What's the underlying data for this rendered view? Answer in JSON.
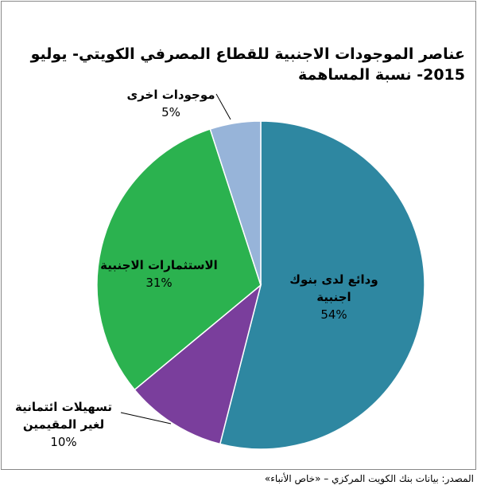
{
  "chart_data": {
    "type": "pie",
    "title": "عناصر الموجودات الاجنبية للقطاع المصرفي الكويتي- يوليو 2015- نسبة المساهمة",
    "categories": [
      "ودائع لدى بنوك اجنبية",
      "تسهيلات ائتمانية لغير المقيمين",
      "الاستثمارات الاجنبية",
      "موجودات اخرى"
    ],
    "values": [
      54,
      10,
      31,
      5
    ],
    "value_labels": [
      "54%",
      "10%",
      "31%",
      "5%"
    ],
    "colors": [
      "#2e87a1",
      "#7a3e9c",
      "#2bb24f",
      "#97b4d9"
    ],
    "source": "المصدر: بيانات بنك الكويت المركزي – «خاص الأنباء»"
  }
}
